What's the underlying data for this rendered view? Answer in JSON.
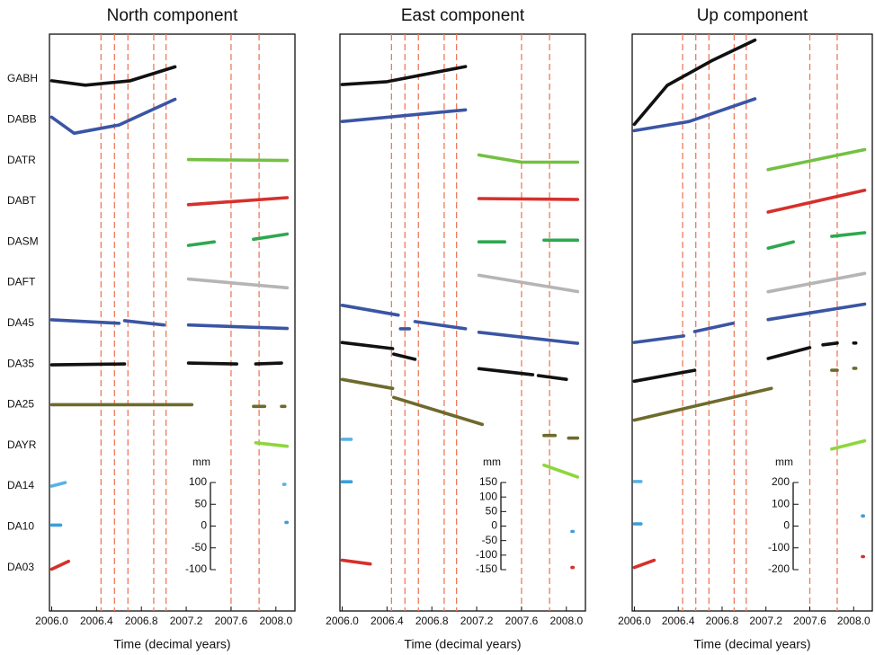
{
  "chart_data": {
    "type": "line",
    "categories": [
      "GABH",
      "DABB",
      "DATR",
      "DABT",
      "DASM",
      "DAFT",
      "DA45",
      "DA35",
      "DA25",
      "DAYR",
      "DA14",
      "DA10",
      "DA03"
    ],
    "event_color": "#ef7a5c",
    "panels": [
      {
        "title": "North component",
        "x_label": "Time (decimal years)",
        "y_unit": "mm",
        "xlim": [
          2005.98,
          2008.17
        ],
        "xticks": [
          {
            "value": 2006.0,
            "label": "2006.0"
          },
          {
            "value": 2006.4,
            "label": "2006.4"
          },
          {
            "value": 2006.8,
            "label": "2006.8"
          },
          {
            "value": 2007.2,
            "label": "2007.2"
          },
          {
            "value": 2007.6,
            "label": "2007.6"
          },
          {
            "value": 2008.0,
            "label": "2008.0"
          }
        ],
        "event_lines": [
          2006.44,
          2006.56,
          2006.68,
          2006.91,
          2007.02,
          2007.6,
          2007.85
        ],
        "ylim": [
          -100,
          100
        ],
        "yticks": [
          100,
          50,
          0,
          -50,
          -100
        ],
        "series": [
          {
            "color": "#111111",
            "x": [
              2006.0,
              2006.3,
              2006.7,
              2007.1
            ],
            "values": [
              -4,
              -14,
              -4,
              28
            ]
          },
          {
            "color": "#3a55a4",
            "x": [
              2006.0,
              2006.2,
              2006.6,
              2007.1
            ],
            "values": [
              6,
              -31,
              -12,
              47
            ]
          },
          {
            "color": "#74c043",
            "x": [
              2007.22,
              2008.1
            ],
            "values": [
              2,
              0
            ]
          },
          {
            "color": "#d6302b",
            "x": [
              2007.22,
              2008.1
            ],
            "values": [
              -8,
              8
            ]
          },
          {
            "color": "#2ea84f",
            "x": [
              2007.22,
              2007.45,
              null,
              2007.8,
              2008.1
            ],
            "values": [
              -8,
              0,
              null,
              6,
              18
            ]
          },
          {
            "color": "#b5b5b5",
            "x": [
              2007.22,
              2008.1
            ],
            "values": [
              8,
              -12
            ]
          },
          {
            "color": "#3a55a4",
            "x": [
              2006.0,
              2006.6,
              null,
              2006.65,
              2007.0,
              null,
              2007.22,
              2008.1
            ],
            "values": [
              8,
              0,
              null,
              6,
              -4,
              null,
              -4,
              -12
            ]
          },
          {
            "color": "#111111",
            "x": [
              2006.0,
              2006.65,
              null,
              2007.22,
              2007.65,
              null,
              2007.82,
              2008.05
            ],
            "values": [
              -2,
              0,
              null,
              2,
              0,
              null,
              0,
              2
            ]
          },
          {
            "color": "#6e6a2c",
            "x": [
              2006.0,
              2007.25,
              null,
              2007.8,
              2007.9,
              null,
              2008.05,
              2008.08
            ],
            "values": [
              0,
              0,
              null,
              -4,
              -4,
              null,
              -4,
              -4
            ]
          },
          {
            "color": "#8ed63d",
            "x": [
              2007.82,
              2008.1
            ],
            "values": [
              6,
              -2
            ]
          },
          {
            "color": "#59b3e4",
            "x": [
              2006.0,
              2006.12,
              null,
              2008.07,
              2008.08
            ],
            "values": [
              0,
              8,
              null,
              4,
              4
            ]
          },
          {
            "color": "#3b9fdc",
            "x": [
              2006.0,
              2006.08,
              null,
              2008.09,
              2008.1
            ],
            "values": [
              4,
              4,
              null,
              10,
              10
            ]
          },
          {
            "color": "#d6302b",
            "x": [
              2006.0,
              2006.15
            ],
            "values": [
              -4,
              14
            ]
          }
        ]
      },
      {
        "title": "East component",
        "x_label": "Time (decimal years)",
        "y_unit": "mm",
        "xlim": [
          2005.98,
          2008.17
        ],
        "xticks": [
          {
            "value": 2006.0,
            "label": "2006.0"
          },
          {
            "value": 2006.4,
            "label": "2006.4"
          },
          {
            "value": 2006.8,
            "label": "2006.8"
          },
          {
            "value": 2007.2,
            "label": "2007.2"
          },
          {
            "value": 2007.6,
            "label": "2007.6"
          },
          {
            "value": 2008.0,
            "label": "2008.0"
          }
        ],
        "event_lines": [
          2006.44,
          2006.56,
          2006.68,
          2006.91,
          2007.02,
          2007.6,
          2007.85
        ],
        "ylim": [
          -150,
          150
        ],
        "yticks": [
          150,
          100,
          50,
          0,
          -50,
          -100,
          -150
        ],
        "series": [
          {
            "color": "#111111",
            "x": [
              2006.0,
              2006.4,
              2007.1
            ],
            "values": [
              -19,
              -9,
              43
            ]
          },
          {
            "color": "#3a55a4",
            "x": [
              2006.0,
              2007.1
            ],
            "values": [
              -6,
              34
            ]
          },
          {
            "color": "#74c043",
            "x": [
              2007.22,
              2007.6,
              2008.1
            ],
            "values": [
              19,
              -6,
              -6
            ]
          },
          {
            "color": "#d6302b",
            "x": [
              2007.22,
              2008.1
            ],
            "values": [
              9,
              6
            ]
          },
          {
            "color": "#2ea84f",
            "x": [
              2007.22,
              2007.45,
              null,
              2007.8,
              2008.1
            ],
            "values": [
              0,
              0,
              null,
              6,
              6
            ]
          },
          {
            "color": "#b5b5b5",
            "x": [
              2007.22,
              2008.1
            ],
            "values": [
              25,
              -31
            ]
          },
          {
            "color": "#3a55a4",
            "x": [
              2006.0,
              2006.5,
              null,
              2006.52,
              2006.6,
              null,
              2006.65,
              2007.1,
              null,
              2007.22,
              2008.1
            ],
            "values": [
              62,
              28,
              null,
              -19,
              -19,
              null,
              6,
              -19,
              null,
              -31,
              -69
            ]
          },
          {
            "color": "#111111",
            "x": [
              2006.0,
              2006.45,
              null,
              2006.46,
              2006.65,
              null,
              2007.22,
              2007.7,
              null,
              2007.75,
              2008.0
            ],
            "values": [
              74,
              53,
              null,
              34,
              16,
              null,
              -16,
              -37,
              null,
              -40,
              -53
            ]
          },
          {
            "color": "#6e6a2c",
            "x": [
              2006.0,
              2006.45,
              null,
              2006.46,
              2007.25,
              null,
              2007.8,
              2007.9,
              null,
              2008.02,
              2008.1
            ],
            "values": [
              87,
              56,
              null,
              25,
              -68,
              null,
              -106,
              -106,
              null,
              -115,
              -115
            ]
          },
          {
            "color": "#8ed63d",
            "x": [
              2007.8,
              2008.1
            ],
            "values": [
              -68,
              -109
            ]
          },
          {
            "color": "#59b3e4",
            "x": [
              2006.0,
              2006.08
            ],
            "values": [
              161,
              161
            ]
          },
          {
            "color": "#3b9fdc",
            "x": [
              2006.0,
              2006.08,
              null,
              2008.05,
              2008.06
            ],
            "values": [
              155,
              155,
              null,
              -16,
              -16
            ]
          },
          {
            "color": "#d6302b",
            "x": [
              2006.0,
              2006.25,
              null,
              2008.05,
              2008.06
            ],
            "values": [
              25,
              12,
              null,
              0,
              0
            ]
          }
        ]
      },
      {
        "title": "Up component",
        "x_label": "Time (decimal years)",
        "y_unit": "mm",
        "xlim": [
          2005.98,
          2008.17
        ],
        "xticks": [
          {
            "value": 2006.0,
            "label": "2006.0"
          },
          {
            "value": 2006.4,
            "label": "2006.4"
          },
          {
            "value": 2006.8,
            "label": "2006.8"
          },
          {
            "value": 2007.2,
            "label": "2007.2"
          },
          {
            "value": 2007.6,
            "label": "2007.6"
          },
          {
            "value": 2008.0,
            "label": "2008.0"
          }
        ],
        "event_lines": [
          2006.44,
          2006.56,
          2006.68,
          2006.91,
          2007.02,
          2007.6,
          2007.85
        ],
        "ylim": [
          -200,
          200
        ],
        "yticks": [
          200,
          100,
          0,
          -100,
          -200
        ],
        "series": [
          {
            "color": "#111111",
            "x": [
              2006.0,
              2006.3,
              2006.7,
              2007.1
            ],
            "values": [
              -208,
              -29,
              83,
              179
            ]
          },
          {
            "color": "#3a55a4",
            "x": [
              2006.0,
              2006.5,
              2007.1
            ],
            "values": [
              -50,
              -8,
              96
            ]
          },
          {
            "color": "#74c043",
            "x": [
              2007.22,
              2008.1
            ],
            "values": [
              -42,
              50
            ]
          },
          {
            "color": "#d6302b",
            "x": [
              2007.22,
              2008.1
            ],
            "values": [
              -50,
              50
            ]
          },
          {
            "color": "#2ea84f",
            "x": [
              2007.22,
              2007.45,
              null,
              2007.8,
              2008.1
            ],
            "values": [
              -29,
              0,
              null,
              25,
              42
            ]
          },
          {
            "color": "#b5b5b5",
            "x": [
              2007.22,
              2008.1
            ],
            "values": [
              -42,
              42
            ]
          },
          {
            "color": "#3a55a4",
            "x": [
              2006.0,
              2006.45,
              null,
              2006.55,
              2006.9,
              null,
              2007.22,
              2008.1
            ],
            "values": [
              -88,
              -58,
              null,
              -38,
              0,
              null,
              17,
              88
            ]
          },
          {
            "color": "#111111",
            "x": [
              2006.0,
              2006.55,
              null,
              2007.22,
              2007.6,
              null,
              2007.72,
              2007.85,
              null,
              2008.0,
              2008.02
            ],
            "values": [
              -79,
              -29,
              null,
              25,
              75,
              null,
              88,
              96,
              null,
              96,
              96
            ]
          },
          {
            "color": "#6e6a2c",
            "x": [
              2006.0,
              2007.25,
              null,
              2007.8,
              2007.85,
              null,
              2008.0,
              2008.02
            ],
            "values": [
              -71,
              75,
              null,
              158,
              158,
              null,
              167,
              167
            ]
          },
          {
            "color": "#8ed63d",
            "x": [
              2007.8,
              2008.1
            ],
            "values": [
              -17,
              21
            ]
          },
          {
            "color": "#59b3e4",
            "x": [
              2006.0,
              2006.06
            ],
            "values": [
              21,
              21
            ]
          },
          {
            "color": "#3b9fdc",
            "x": [
              2006.0,
              2006.06,
              null,
              2008.08,
              2008.09
            ],
            "values": [
              13,
              13,
              null,
              50,
              50
            ]
          },
          {
            "color": "#d6302b",
            "x": [
              2006.0,
              2006.18,
              null,
              2008.08,
              2008.09
            ],
            "values": [
              0,
              33,
              null,
              50,
              50
            ]
          }
        ]
      }
    ]
  }
}
